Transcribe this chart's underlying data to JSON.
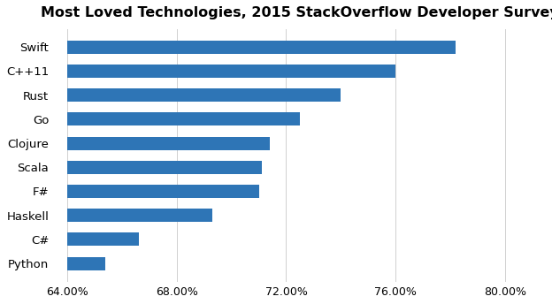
{
  "title": "Most Loved Technologies, 2015 StackOverflow Developer Survey",
  "categories": [
    "Python",
    "C#",
    "Haskell",
    "F#",
    "Scala",
    "Clojure",
    "Go",
    "Rust",
    "C++11",
    "Swift"
  ],
  "values": [
    65.4,
    66.6,
    69.3,
    71.0,
    71.1,
    71.4,
    72.5,
    74.0,
    76.0,
    78.2
  ],
  "bar_color": "#2E75B6",
  "xlim": [
    63.5,
    81.5
  ],
  "xticks": [
    64,
    68,
    72,
    76,
    80
  ],
  "xtick_labels": [
    "64.00%",
    "68.00%",
    "72.00%",
    "76.00%",
    "80.00%"
  ],
  "background_color": "#ffffff",
  "title_fontsize": 11.5,
  "label_fontsize": 9.5,
  "tick_fontsize": 9,
  "bar_height": 0.55
}
